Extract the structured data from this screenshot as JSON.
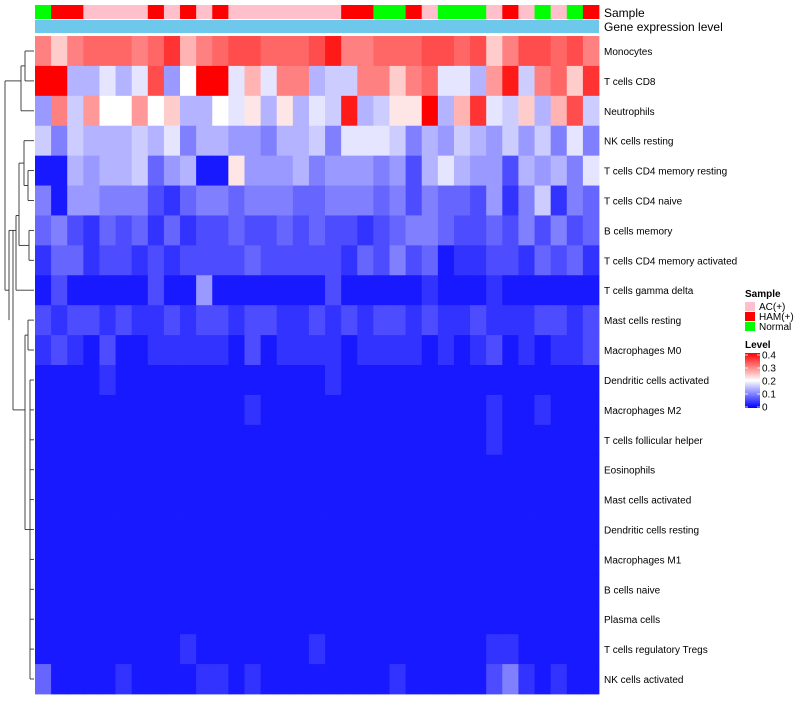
{
  "chart_data": {
    "type": "heatmap",
    "title": "",
    "annotation_rows": [
      "Sample",
      "Gene expression level"
    ],
    "legend": {
      "sample": {
        "title": "Sample",
        "entries": [
          {
            "label": "AC(+)",
            "color": "#FFC0CB"
          },
          {
            "label": "HAM(+)",
            "color": "#FF0000"
          },
          {
            "label": "Normal",
            "color": "#00FF00"
          }
        ]
      },
      "level": {
        "title": "Level",
        "min": 0,
        "max": 0.4,
        "ticks": [
          "0.4",
          "0.3",
          "0.2",
          "0.1",
          "0"
        ],
        "colors": {
          "low": "#0000FF",
          "mid": "#FFFFFF",
          "high": "#FF0000"
        }
      }
    },
    "sample_groups": [
      "Normal",
      "HAM(+)",
      "HAM(+)",
      "AC(+)",
      "AC(+)",
      "AC(+)",
      "AC(+)",
      "HAM(+)",
      "AC(+)",
      "HAM(+)",
      "AC(+)",
      "HAM(+)",
      "AC(+)",
      "AC(+)",
      "AC(+)",
      "AC(+)",
      "AC(+)",
      "AC(+)",
      "AC(+)",
      "HAM(+)",
      "HAM(+)",
      "Normal",
      "Normal",
      "HAM(+)",
      "AC(+)",
      "Normal",
      "Normal",
      "Normal",
      "AC(+)",
      "HAM(+)",
      "AC(+)",
      "Normal",
      "AC(+)",
      "Normal",
      "HAM(+)"
    ],
    "gene_expression_color": "#6EC8EC",
    "rows": [
      "Monocytes",
      "T cells CD8",
      "Neutrophils",
      "NK cells resting",
      "T cells CD4 memory resting",
      "T cells CD4 naive",
      "B cells memory",
      "T cells CD4 memory activated",
      "T cells gamma delta",
      "Mast cells resting",
      "Macrophages M0",
      "Dendritic cells activated",
      "Macrophages M2",
      "T cells follicular helper",
      "Eosinophils",
      "Mast cells activated",
      "Dendritic cells resting",
      "Macrophages M1",
      "B cells naive",
      "Plasma cells",
      "T cells regulatory  Tregs",
      "NK cells activated"
    ],
    "values": [
      [
        0.3,
        0.24,
        0.3,
        0.32,
        0.32,
        0.32,
        0.3,
        0.32,
        0.36,
        0.26,
        0.3,
        0.32,
        0.34,
        0.34,
        0.32,
        0.32,
        0.32,
        0.34,
        0.38,
        0.3,
        0.3,
        0.32,
        0.32,
        0.32,
        0.34,
        0.34,
        0.32,
        0.34,
        0.24,
        0.3,
        0.34,
        0.34,
        0.32,
        0.34,
        0.3
      ],
      [
        0.4,
        0.4,
        0.14,
        0.14,
        0.18,
        0.14,
        0.18,
        0.34,
        0.12,
        0.2,
        0.4,
        0.4,
        0.18,
        0.26,
        0.18,
        0.3,
        0.3,
        0.14,
        0.16,
        0.16,
        0.3,
        0.3,
        0.24,
        0.3,
        0.32,
        0.18,
        0.18,
        0.14,
        0.28,
        0.38,
        0.16,
        0.3,
        0.32,
        0.24,
        0.36
      ],
      [
        0.12,
        0.3,
        0.16,
        0.28,
        0.2,
        0.2,
        0.28,
        0.2,
        0.24,
        0.14,
        0.14,
        0.2,
        0.18,
        0.22,
        0.14,
        0.22,
        0.14,
        0.18,
        0.16,
        0.38,
        0.14,
        0.16,
        0.22,
        0.22,
        0.4,
        0.14,
        0.26,
        0.36,
        0.18,
        0.16,
        0.24,
        0.14,
        0.26,
        0.34,
        0.16
      ],
      [
        0.16,
        0.1,
        0.16,
        0.14,
        0.14,
        0.14,
        0.16,
        0.14,
        0.18,
        0.1,
        0.14,
        0.14,
        0.12,
        0.12,
        0.1,
        0.14,
        0.14,
        0.16,
        0.1,
        0.18,
        0.18,
        0.18,
        0.16,
        0.1,
        0.14,
        0.12,
        0.16,
        0.14,
        0.12,
        0.16,
        0.12,
        0.16,
        0.1,
        0.18,
        0.1
      ],
      [
        0.02,
        0.02,
        0.14,
        0.12,
        0.14,
        0.14,
        0.16,
        0.08,
        0.12,
        0.14,
        0.02,
        0.02,
        0.22,
        0.12,
        0.12,
        0.12,
        0.14,
        0.1,
        0.12,
        0.12,
        0.12,
        0.1,
        0.12,
        0.06,
        0.14,
        0.18,
        0.14,
        0.12,
        0.12,
        0.06,
        0.14,
        0.12,
        0.14,
        0.1,
        0.18
      ],
      [
        0.1,
        0.02,
        0.12,
        0.12,
        0.1,
        0.1,
        0.1,
        0.06,
        0.04,
        0.08,
        0.1,
        0.1,
        0.08,
        0.1,
        0.1,
        0.1,
        0.08,
        0.08,
        0.1,
        0.1,
        0.1,
        0.08,
        0.1,
        0.06,
        0.1,
        0.08,
        0.08,
        0.06,
        0.12,
        0.04,
        0.1,
        0.16,
        0.04,
        0.1,
        0.08
      ],
      [
        0.08,
        0.1,
        0.06,
        0.04,
        0.08,
        0.06,
        0.08,
        0.04,
        0.08,
        0.04,
        0.06,
        0.06,
        0.08,
        0.06,
        0.06,
        0.08,
        0.06,
        0.08,
        0.06,
        0.06,
        0.04,
        0.06,
        0.08,
        0.1,
        0.1,
        0.08,
        0.06,
        0.06,
        0.08,
        0.06,
        0.1,
        0.06,
        0.1,
        0.06,
        0.08
      ],
      [
        0.04,
        0.08,
        0.08,
        0.04,
        0.06,
        0.06,
        0.04,
        0.06,
        0.04,
        0.06,
        0.06,
        0.06,
        0.06,
        0.08,
        0.06,
        0.06,
        0.06,
        0.06,
        0.06,
        0.04,
        0.08,
        0.06,
        0.1,
        0.06,
        0.08,
        0.02,
        0.04,
        0.04,
        0.06,
        0.06,
        0.04,
        0.08,
        0.06,
        0.08,
        0.04
      ],
      [
        0.02,
        0.06,
        0.02,
        0.02,
        0.02,
        0.02,
        0.02,
        0.06,
        0.02,
        0.02,
        0.12,
        0.02,
        0.02,
        0.02,
        0.02,
        0.02,
        0.02,
        0.02,
        0.06,
        0.02,
        0.02,
        0.02,
        0.02,
        0.02,
        0.04,
        0.02,
        0.02,
        0.02,
        0.04,
        0.02,
        0.02,
        0.02,
        0.02,
        0.02,
        0.02
      ],
      [
        0.06,
        0.04,
        0.06,
        0.06,
        0.04,
        0.06,
        0.04,
        0.04,
        0.06,
        0.04,
        0.06,
        0.06,
        0.04,
        0.06,
        0.06,
        0.04,
        0.04,
        0.06,
        0.04,
        0.06,
        0.04,
        0.06,
        0.06,
        0.04,
        0.06,
        0.04,
        0.04,
        0.06,
        0.04,
        0.04,
        0.04,
        0.06,
        0.06,
        0.04,
        0.06
      ],
      [
        0.04,
        0.06,
        0.04,
        0.02,
        0.06,
        0.02,
        0.02,
        0.04,
        0.04,
        0.04,
        0.04,
        0.04,
        0.02,
        0.06,
        0.02,
        0.04,
        0.04,
        0.04,
        0.04,
        0.02,
        0.04,
        0.04,
        0.04,
        0.04,
        0.02,
        0.04,
        0.02,
        0.04,
        0.06,
        0.02,
        0.04,
        0.02,
        0.04,
        0.04,
        0.06
      ],
      [
        0.02,
        0.02,
        0.02,
        0.02,
        0.04,
        0.02,
        0.02,
        0.02,
        0.02,
        0.02,
        0.02,
        0.02,
        0.02,
        0.02,
        0.02,
        0.02,
        0.02,
        0.02,
        0.04,
        0.02,
        0.02,
        0.02,
        0.02,
        0.02,
        0.02,
        0.02,
        0.02,
        0.02,
        0.02,
        0.02,
        0.02,
        0.02,
        0.02,
        0.02,
        0.02
      ],
      [
        0.02,
        0.02,
        0.02,
        0.02,
        0.02,
        0.02,
        0.02,
        0.02,
        0.02,
        0.02,
        0.02,
        0.02,
        0.02,
        0.04,
        0.02,
        0.02,
        0.02,
        0.02,
        0.02,
        0.02,
        0.02,
        0.02,
        0.02,
        0.02,
        0.02,
        0.02,
        0.02,
        0.02,
        0.04,
        0.02,
        0.02,
        0.04,
        0.02,
        0.02,
        0.02
      ],
      [
        0.02,
        0.02,
        0.02,
        0.02,
        0.02,
        0.02,
        0.02,
        0.02,
        0.02,
        0.02,
        0.02,
        0.02,
        0.02,
        0.02,
        0.02,
        0.02,
        0.02,
        0.02,
        0.02,
        0.02,
        0.02,
        0.02,
        0.02,
        0.02,
        0.02,
        0.02,
        0.02,
        0.02,
        0.04,
        0.02,
        0.02,
        0.02,
        0.02,
        0.02,
        0.02
      ],
      [
        0.02,
        0.02,
        0.02,
        0.02,
        0.02,
        0.02,
        0.02,
        0.02,
        0.02,
        0.02,
        0.02,
        0.02,
        0.02,
        0.02,
        0.02,
        0.02,
        0.02,
        0.02,
        0.02,
        0.02,
        0.02,
        0.02,
        0.02,
        0.02,
        0.02,
        0.02,
        0.02,
        0.02,
        0.02,
        0.02,
        0.02,
        0.02,
        0.02,
        0.02,
        0.02
      ],
      [
        0.02,
        0.02,
        0.02,
        0.02,
        0.02,
        0.02,
        0.02,
        0.02,
        0.02,
        0.02,
        0.02,
        0.02,
        0.02,
        0.02,
        0.02,
        0.02,
        0.02,
        0.02,
        0.02,
        0.02,
        0.02,
        0.02,
        0.02,
        0.02,
        0.02,
        0.02,
        0.02,
        0.02,
        0.02,
        0.02,
        0.02,
        0.02,
        0.02,
        0.02,
        0.02
      ],
      [
        0.02,
        0.02,
        0.02,
        0.02,
        0.02,
        0.02,
        0.02,
        0.02,
        0.02,
        0.02,
        0.02,
        0.02,
        0.02,
        0.02,
        0.02,
        0.02,
        0.02,
        0.02,
        0.02,
        0.02,
        0.02,
        0.02,
        0.02,
        0.02,
        0.02,
        0.02,
        0.02,
        0.02,
        0.02,
        0.02,
        0.02,
        0.02,
        0.02,
        0.02,
        0.02
      ],
      [
        0.02,
        0.02,
        0.02,
        0.02,
        0.02,
        0.02,
        0.02,
        0.02,
        0.02,
        0.02,
        0.02,
        0.02,
        0.02,
        0.02,
        0.02,
        0.02,
        0.02,
        0.02,
        0.02,
        0.02,
        0.02,
        0.02,
        0.02,
        0.02,
        0.02,
        0.02,
        0.02,
        0.02,
        0.02,
        0.02,
        0.02,
        0.02,
        0.02,
        0.02,
        0.02
      ],
      [
        0.02,
        0.02,
        0.02,
        0.02,
        0.02,
        0.02,
        0.02,
        0.02,
        0.02,
        0.02,
        0.02,
        0.02,
        0.02,
        0.02,
        0.02,
        0.02,
        0.02,
        0.02,
        0.02,
        0.02,
        0.02,
        0.02,
        0.02,
        0.02,
        0.02,
        0.02,
        0.02,
        0.02,
        0.02,
        0.02,
        0.02,
        0.02,
        0.02,
        0.02,
        0.02
      ],
      [
        0.02,
        0.02,
        0.02,
        0.02,
        0.02,
        0.02,
        0.02,
        0.02,
        0.02,
        0.02,
        0.02,
        0.02,
        0.02,
        0.02,
        0.02,
        0.02,
        0.02,
        0.02,
        0.02,
        0.02,
        0.02,
        0.02,
        0.02,
        0.02,
        0.02,
        0.02,
        0.02,
        0.02,
        0.02,
        0.02,
        0.02,
        0.02,
        0.02,
        0.02,
        0.02
      ],
      [
        0.02,
        0.02,
        0.02,
        0.02,
        0.02,
        0.02,
        0.02,
        0.02,
        0.02,
        0.04,
        0.02,
        0.02,
        0.02,
        0.02,
        0.02,
        0.02,
        0.02,
        0.04,
        0.02,
        0.02,
        0.02,
        0.02,
        0.02,
        0.02,
        0.02,
        0.02,
        0.02,
        0.02,
        0.04,
        0.04,
        0.02,
        0.02,
        0.02,
        0.02,
        0.02
      ],
      [
        0.08,
        0.02,
        0.02,
        0.02,
        0.02,
        0.04,
        0.02,
        0.02,
        0.02,
        0.02,
        0.04,
        0.04,
        0.02,
        0.04,
        0.02,
        0.02,
        0.02,
        0.02,
        0.02,
        0.02,
        0.02,
        0.02,
        0.04,
        0.02,
        0.02,
        0.02,
        0.02,
        0.02,
        0.06,
        0.1,
        0.04,
        0.02,
        0.04,
        0.02,
        0.02
      ]
    ]
  }
}
